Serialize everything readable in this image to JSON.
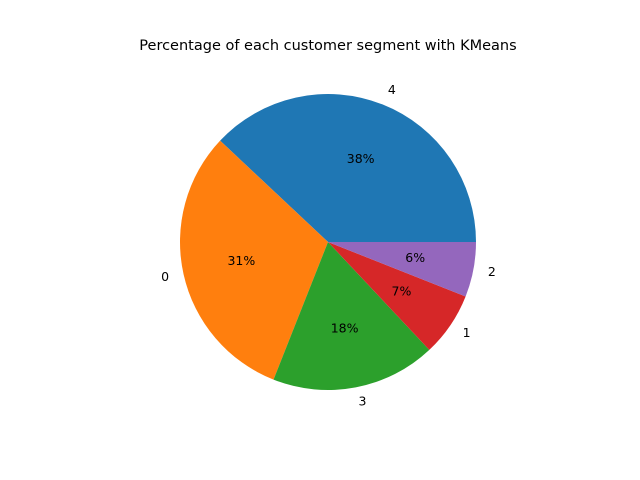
{
  "chart_data": {
    "type": "pie",
    "title": "Percentage of each customer segment with KMeans",
    "startangle_deg": 0,
    "direction": "counterclockwise",
    "slices": [
      {
        "label": "4",
        "value": 38,
        "percent_label": "38%",
        "color": "#1f77b4"
      },
      {
        "label": "0",
        "value": 31,
        "percent_label": "31%",
        "color": "#ff7f0e"
      },
      {
        "label": "3",
        "value": 18,
        "percent_label": "18%",
        "color": "#2ca02c"
      },
      {
        "label": "1",
        "value": 7,
        "percent_label": "7%",
        "color": "#d62728"
      },
      {
        "label": "2",
        "value": 6,
        "percent_label": "6%",
        "color": "#9467bd"
      }
    ]
  }
}
